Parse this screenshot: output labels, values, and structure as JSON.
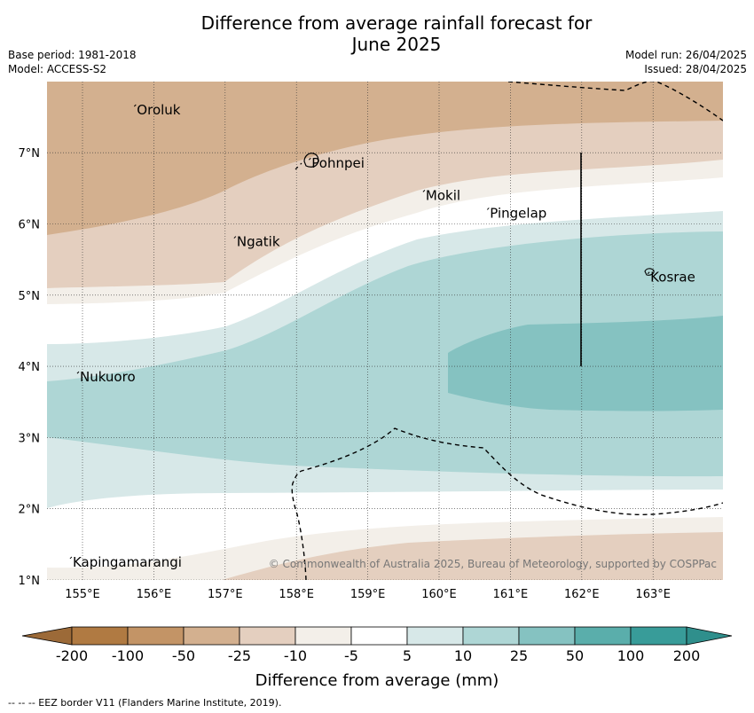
{
  "title_line1": "Difference from average rainfall forecast for",
  "title_line2": "June 2025",
  "meta": {
    "base_period": "Base period: 1981-2018",
    "model": "Model: ACCESS-S2",
    "model_run": "Model run: 26/04/2025",
    "issued": "Issued: 28/04/2025"
  },
  "axes": {
    "lon_ticks": [
      "155°E",
      "156°E",
      "157°E",
      "158°E",
      "159°E",
      "160°E",
      "161°E",
      "162°E",
      "163°E"
    ],
    "lat_ticks": [
      "1°N",
      "2°N",
      "3°N",
      "4°N",
      "5°N",
      "6°N",
      "7°N"
    ]
  },
  "places": [
    {
      "name": "Oroluk",
      "lon": 155.75,
      "lat": 7.6
    },
    {
      "name": "Pohnpei",
      "lon": 158.2,
      "lat": 6.85
    },
    {
      "name": "Mokil",
      "lon": 159.8,
      "lat": 6.4
    },
    {
      "name": "Pingelap",
      "lon": 160.7,
      "lat": 6.15
    },
    {
      "name": "Ngatik",
      "lon": 157.15,
      "lat": 5.75
    },
    {
      "name": "Kosrae",
      "lon": 162.95,
      "lat": 5.25
    },
    {
      "name": "Nukuoro",
      "lon": 154.95,
      "lat": 3.85
    },
    {
      "name": "Kapingamarangi",
      "lon": 154.85,
      "lat": 1.25
    }
  ],
  "copyright": "© Commonwealth of Australia 2025, Bureau of Meteorology, supported by COSPPac",
  "colorbar": {
    "ticks": [
      "-200",
      "-100",
      "-50",
      "-25",
      "-10",
      "-5",
      "5",
      "10",
      "25",
      "50",
      "100",
      "200"
    ],
    "colors": [
      "#b07a42",
      "#c39466",
      "#d3b08f",
      "#e4cfbf",
      "#f3efe9",
      "#ffffff",
      "#d7e8e8",
      "#aed6d5",
      "#85c2c1",
      "#5aaeab",
      "#389c99"
    ],
    "label": "Difference from average (mm)"
  },
  "legend_note": "-- -- -- EEZ border V11 (Flanders Marine Institute, 2019)."
}
